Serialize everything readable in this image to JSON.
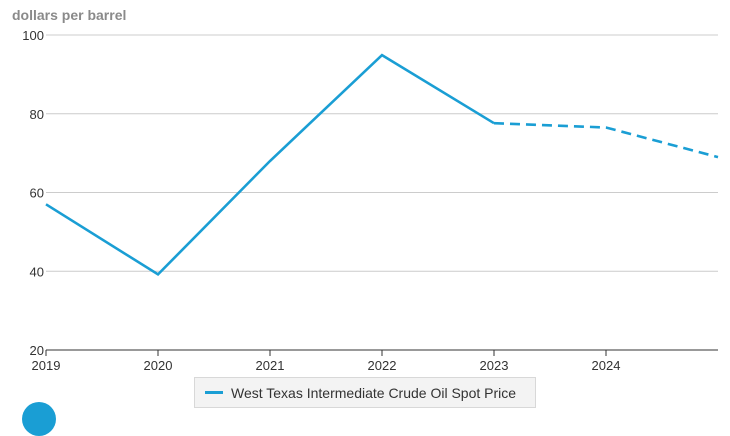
{
  "chart_data": {
    "type": "line",
    "ylabel": "dollars per barrel",
    "x_ticks": [
      "2019",
      "2020",
      "2021",
      "2022",
      "2023",
      "2024"
    ],
    "y_ticks": [
      20,
      40,
      60,
      80,
      100
    ],
    "xlim": [
      2019,
      2025
    ],
    "ylim": [
      20,
      100
    ],
    "grid": true,
    "legend_position": "bottom",
    "series": [
      {
        "name": "West Texas Intermediate Crude Oil Spot Price",
        "color": "#1a9ed4",
        "historical": [
          {
            "x": 2019,
            "y": 57.0
          },
          {
            "x": 2020,
            "y": 39.2
          },
          {
            "x": 2021,
            "y": 68.0
          },
          {
            "x": 2022,
            "y": 94.9
          },
          {
            "x": 2023,
            "y": 77.6
          }
        ],
        "forecast": [
          {
            "x": 2023,
            "y": 77.6
          },
          {
            "x": 2024,
            "y": 76.5
          },
          {
            "x": 2025,
            "y": 69.0
          }
        ]
      }
    ]
  }
}
